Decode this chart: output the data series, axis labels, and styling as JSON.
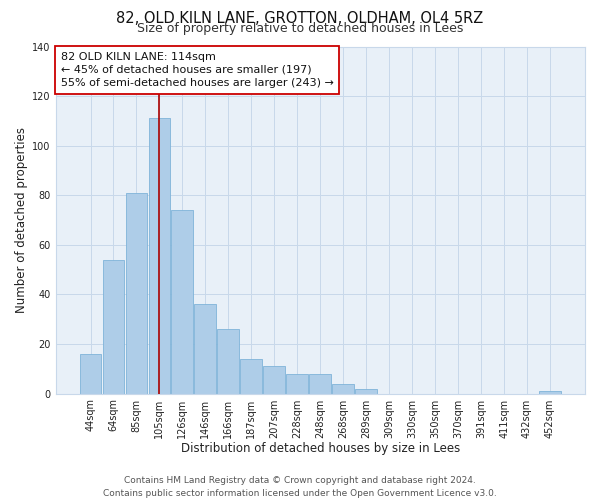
{
  "title": "82, OLD KILN LANE, GROTTON, OLDHAM, OL4 5RZ",
  "subtitle": "Size of property relative to detached houses in Lees",
  "xlabel": "Distribution of detached houses by size in Lees",
  "ylabel": "Number of detached properties",
  "bar_labels": [
    "44sqm",
    "64sqm",
    "85sqm",
    "105sqm",
    "126sqm",
    "146sqm",
    "166sqm",
    "187sqm",
    "207sqm",
    "228sqm",
    "248sqm",
    "268sqm",
    "289sqm",
    "309sqm",
    "330sqm",
    "350sqm",
    "370sqm",
    "391sqm",
    "411sqm",
    "432sqm",
    "452sqm"
  ],
  "bar_values": [
    16,
    54,
    81,
    111,
    74,
    36,
    26,
    14,
    11,
    8,
    8,
    4,
    2,
    0,
    0,
    0,
    0,
    0,
    0,
    0,
    1
  ],
  "bar_color": "#aecde8",
  "bar_edge_color": "#7fb3d9",
  "highlight_line_color": "#aa0000",
  "ylim": [
    0,
    140
  ],
  "yticks": [
    0,
    20,
    40,
    60,
    80,
    100,
    120,
    140
  ],
  "annotation_text": "82 OLD KILN LANE: 114sqm\n← 45% of detached houses are smaller (197)\n55% of semi-detached houses are larger (243) →",
  "annotation_box_color": "#ffffff",
  "annotation_box_edge": "#cc0000",
  "footer_line1": "Contains HM Land Registry data © Crown copyright and database right 2024.",
  "footer_line2": "Contains public sector information licensed under the Open Government Licence v3.0.",
  "background_color": "#ffffff",
  "plot_bg_color": "#e8f0f8",
  "grid_color": "#c8d8ea",
  "title_fontsize": 10.5,
  "subtitle_fontsize": 9,
  "xlabel_fontsize": 8.5,
  "ylabel_fontsize": 8.5,
  "tick_fontsize": 7,
  "annotation_fontsize": 8,
  "footer_fontsize": 6.5
}
